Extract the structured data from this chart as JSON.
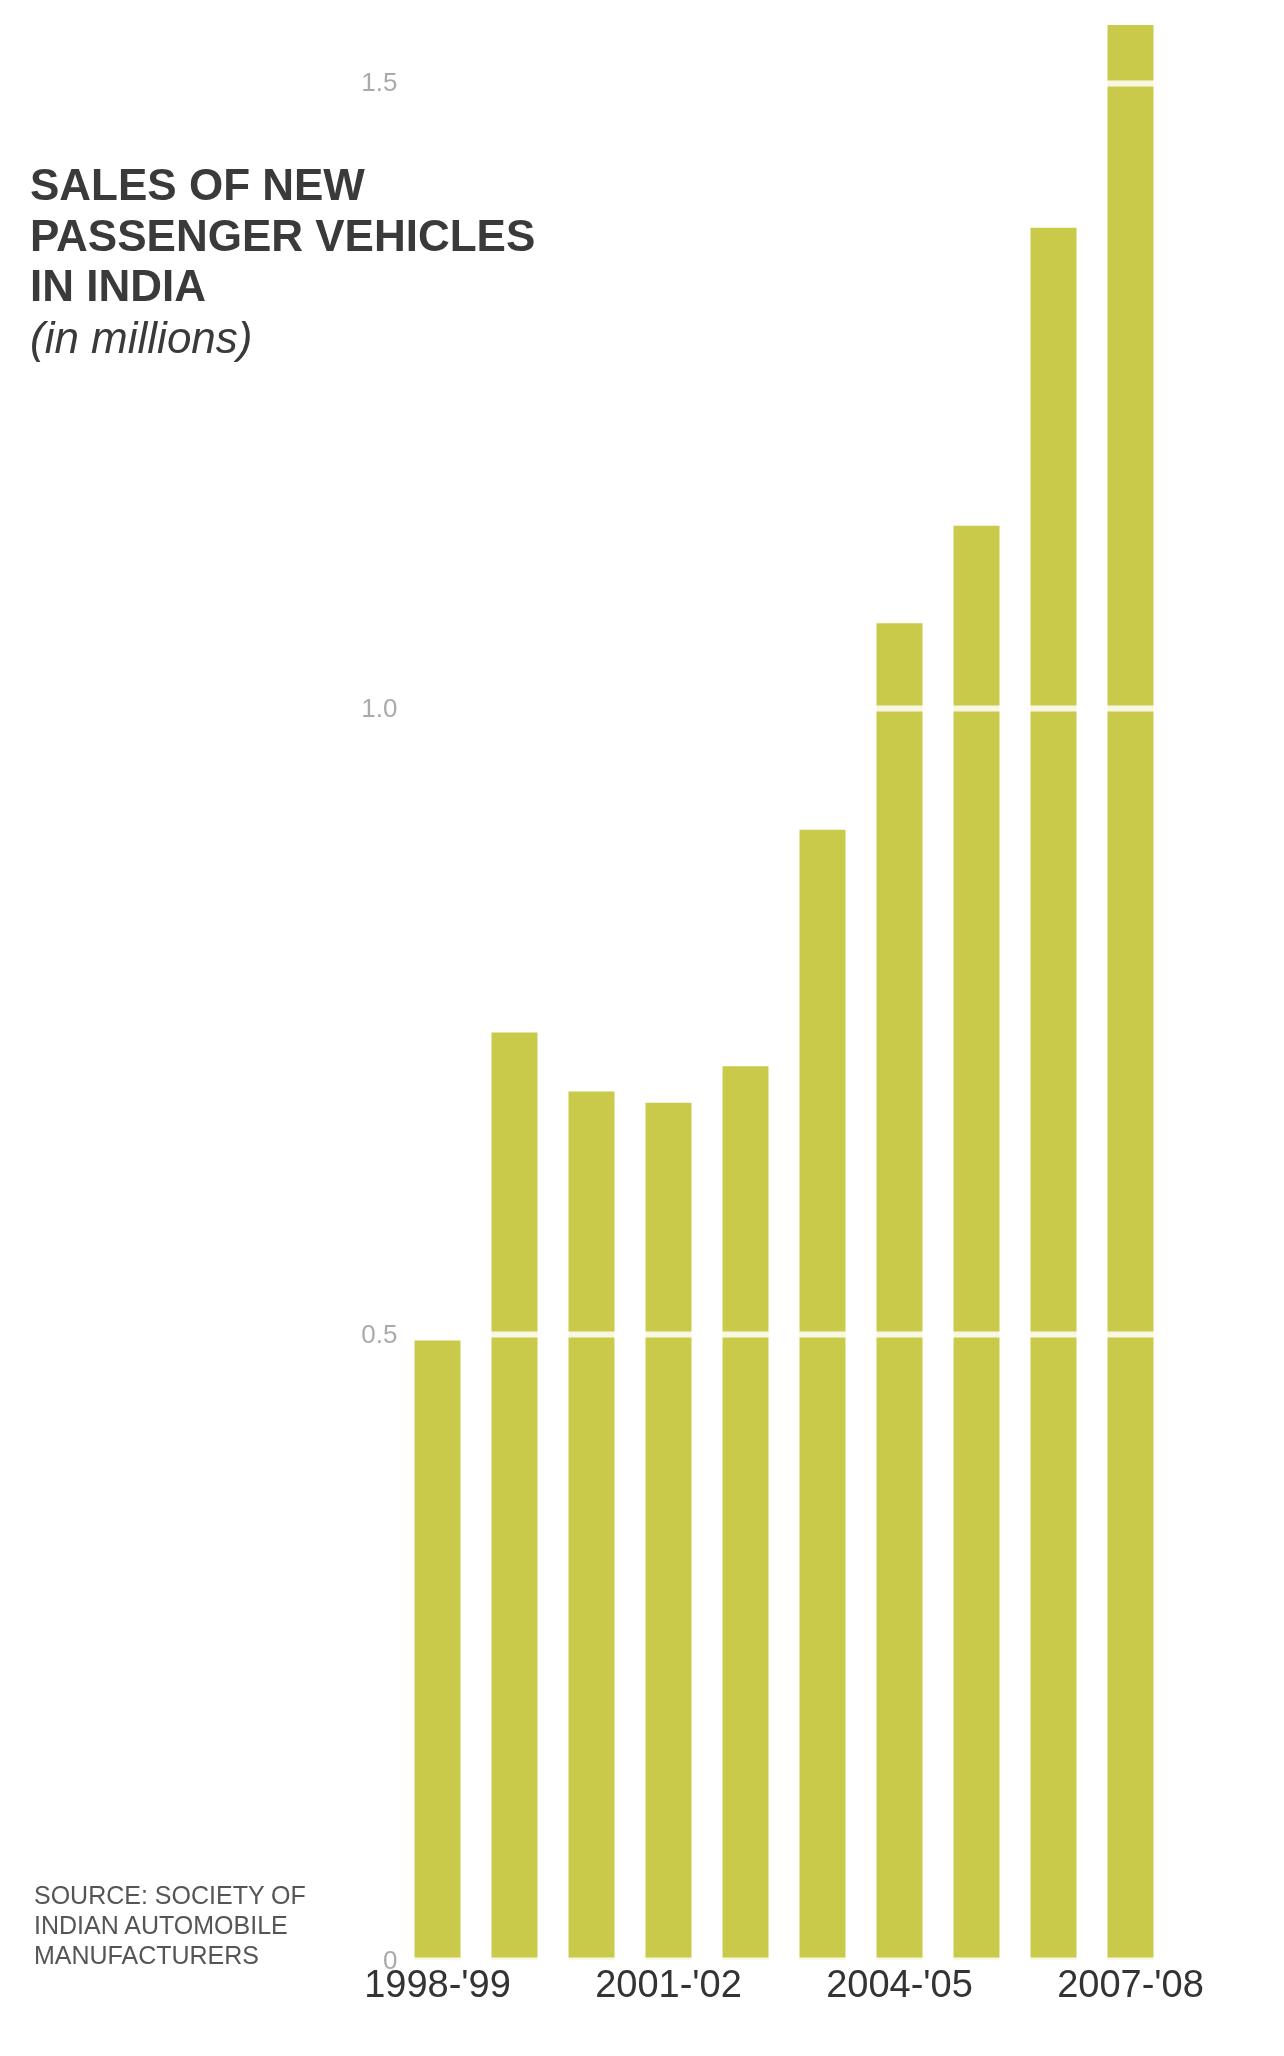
{
  "chart_data": {
    "type": "bar",
    "title": "SALES OF NEW PASSENGER VEHICLES IN INDIA",
    "subtitle": "(in millions)",
    "categories": [
      "1998-'99",
      null,
      null,
      "2001-'02",
      null,
      null,
      "2004-'05",
      null,
      null,
      "2007-'08"
    ],
    "values": [
      0.495,
      0.741,
      0.694,
      0.685,
      0.714,
      0.903,
      1.068,
      1.146,
      1.384,
      1.546
    ],
    "color": "#c9c94a",
    "ylim": [
      0,
      1.55
    ],
    "yticks": [
      0,
      0.5,
      {
        "value": 1,
        "label": "1.0"
      },
      1.5
    ],
    "grid": "y",
    "annotations": [
      "SOURCE: SOCIETY OF INDIAN AUTOMOBILE MANUFACTURERS"
    ]
  }
}
